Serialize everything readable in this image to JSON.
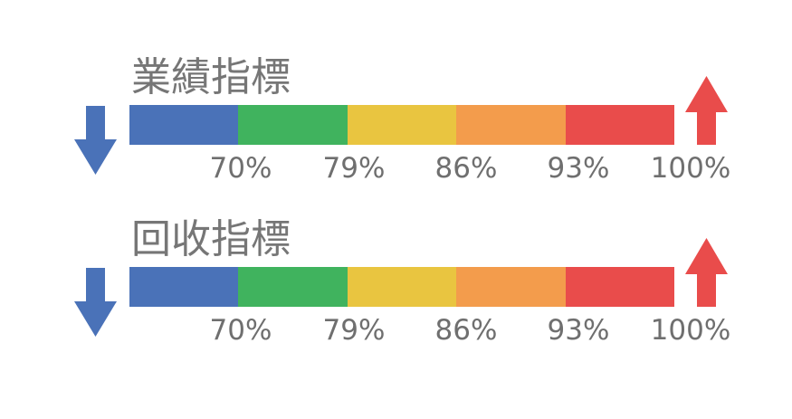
{
  "indicators": [
    {
      "title": "業績指標",
      "segments": [
        {
          "color": "#4a72b8"
        },
        {
          "color": "#40b35e"
        },
        {
          "color": "#e9c540"
        },
        {
          "color": "#f39c4c"
        },
        {
          "color": "#e94c4b"
        }
      ],
      "thresholds": [
        "70%",
        "79%",
        "86%",
        "93%",
        "100%"
      ],
      "down_arrow": {
        "icon": "arrow-down-icon",
        "color": "#4a72b8"
      },
      "up_arrow": {
        "icon": "arrow-up-icon",
        "color": "#e94c4b"
      }
    },
    {
      "title": "回收指標",
      "segments": [
        {
          "color": "#4a72b8"
        },
        {
          "color": "#40b35e"
        },
        {
          "color": "#e9c540"
        },
        {
          "color": "#f39c4c"
        },
        {
          "color": "#e94c4b"
        }
      ],
      "thresholds": [
        "70%",
        "79%",
        "86%",
        "93%",
        "100%"
      ],
      "down_arrow": {
        "icon": "arrow-down-icon",
        "color": "#4a72b8"
      },
      "up_arrow": {
        "icon": "arrow-up-icon",
        "color": "#e94c4b"
      }
    }
  ]
}
